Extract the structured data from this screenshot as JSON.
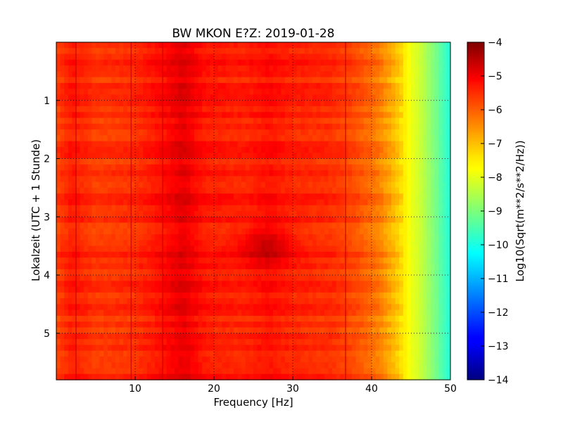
{
  "chart_data": {
    "type": "heatmap",
    "title": "BW MKON E?Z: 2019-01-28",
    "xlabel": "Frequency [Hz]",
    "ylabel": "Lokalzeit (UTC + 1 Stunde)",
    "xlim": [
      0,
      50
    ],
    "ylim": [
      5.8,
      0
    ],
    "x_ticks": [
      10,
      20,
      30,
      40,
      50
    ],
    "y_ticks": [
      1,
      2,
      3,
      4,
      5
    ],
    "grid": true,
    "colorbar": {
      "label": "Log10(Sqrt(m**2/s**2/Hz))",
      "range": [
        -14,
        -4
      ],
      "ticks": [
        -4,
        -5,
        -6,
        -7,
        -8,
        -9,
        -10,
        -11,
        -12,
        -13,
        -14
      ],
      "colormap": "jet"
    },
    "spectrum_profile": {
      "frequencies": [
        0,
        2,
        5,
        10,
        14,
        16,
        19,
        24,
        27,
        30,
        35,
        38,
        40,
        41,
        42,
        43,
        44,
        45,
        46,
        47,
        48,
        49,
        50
      ],
      "values": [
        -5.9,
        -5.5,
        -5.8,
        -5.7,
        -5.3,
        -5.0,
        -5.5,
        -5.6,
        -5.4,
        -5.6,
        -5.7,
        -6.0,
        -6.3,
        -6.5,
        -6.8,
        -7.1,
        -7.5,
        -7.9,
        -8.2,
        -8.6,
        -9.0,
        -9.5,
        -9.9
      ]
    },
    "hot_spots": [
      {
        "freq": 26.5,
        "time": 3.5,
        "value": -4.7
      }
    ],
    "vertical_lines_hz": [
      2.5,
      9.5,
      13.5,
      36.7
    ]
  }
}
